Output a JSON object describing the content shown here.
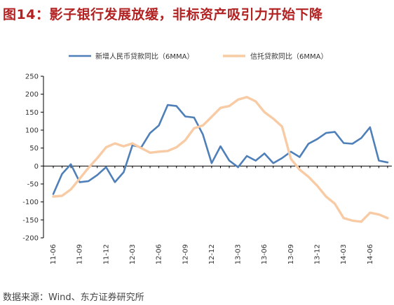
{
  "header": {
    "title": "图14：影子银行发展放缓，非标资产吸引力开始下降"
  },
  "footer": {
    "source": "数据来源：Wind、东方证券研究所"
  },
  "chart_data": {
    "type": "line",
    "title": "",
    "xlabel": "",
    "ylabel": "",
    "ylim": [
      -200,
      250
    ],
    "yticks": [
      250,
      200,
      150,
      100,
      50,
      0,
      -50,
      -100,
      -150,
      -200
    ],
    "x_tick_labels": [
      "11-06",
      "11-09",
      "11-12",
      "12-03",
      "12-06",
      "12-09",
      "12-12",
      "13-03",
      "13-06",
      "13-09",
      "13-12",
      "14-03",
      "14-06"
    ],
    "x": [
      "11-06",
      "11-07",
      "11-08",
      "11-09",
      "11-10",
      "11-11",
      "11-12",
      "12-01",
      "12-02",
      "12-03",
      "12-04",
      "12-05",
      "12-06",
      "12-07",
      "12-08",
      "12-09",
      "12-10",
      "12-11",
      "12-12",
      "13-01",
      "13-02",
      "13-03",
      "13-04",
      "13-05",
      "13-06",
      "13-07",
      "13-08",
      "13-09",
      "13-10",
      "13-11",
      "13-12",
      "14-01",
      "14-02",
      "14-03",
      "14-04",
      "14-05",
      "14-06",
      "14-07",
      "14-08"
    ],
    "legend_position": "top",
    "grid": false,
    "series": [
      {
        "name": "新增人民币贷款同比（6MMA）",
        "color": "#4e7fb8",
        "values": [
          -78,
          -22,
          5,
          -45,
          -42,
          -25,
          -3,
          -45,
          -17,
          58,
          52,
          92,
          113,
          170,
          167,
          138,
          135,
          88,
          8,
          55,
          15,
          -3,
          28,
          15,
          35,
          8,
          22,
          40,
          25,
          62,
          75,
          92,
          95,
          64,
          62,
          78,
          108,
          15,
          10
        ]
      },
      {
        "name": "信托贷款同比（6MMA）",
        "color": "#f8cba4",
        "values": [
          -85,
          -83,
          -65,
          -35,
          -5,
          22,
          52,
          63,
          55,
          63,
          50,
          37,
          40,
          42,
          52,
          72,
          105,
          113,
          137,
          162,
          167,
          185,
          192,
          180,
          150,
          132,
          110,
          20,
          -10,
          -30,
          -55,
          -85,
          -105,
          -145,
          -152,
          -155,
          -130,
          -135,
          -145
        ]
      }
    ]
  }
}
